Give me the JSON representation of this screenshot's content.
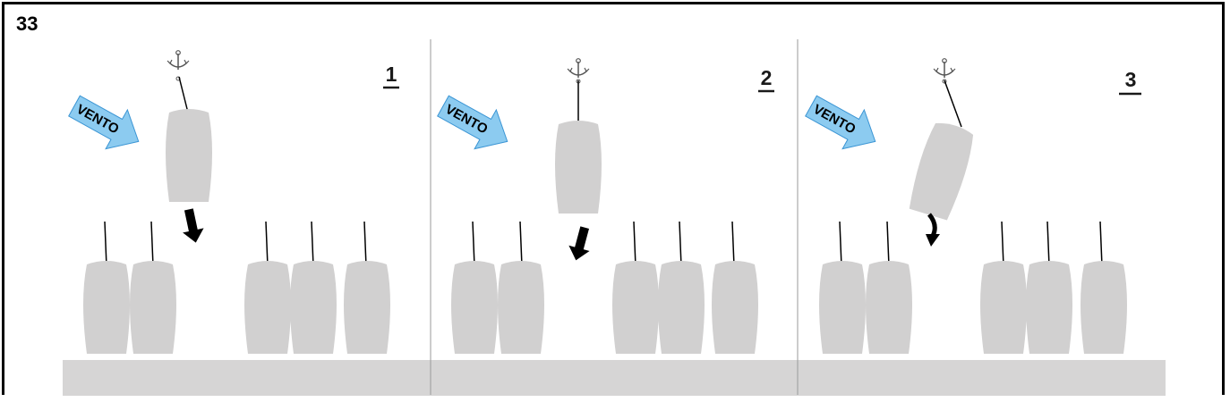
{
  "figure_number": "33",
  "wind_label": "VENTO",
  "panels": [
    {
      "step": "1"
    },
    {
      "step": "2"
    },
    {
      "step": "3"
    }
  ],
  "colors": {
    "boat": "#d1d0d0",
    "dock": "#d6d5d5",
    "wind_arrow_fill": "#8ccbf0",
    "wind_arrow_stroke": "#3b95d4",
    "line": "#000000",
    "divider": "#9a9a9a"
  }
}
